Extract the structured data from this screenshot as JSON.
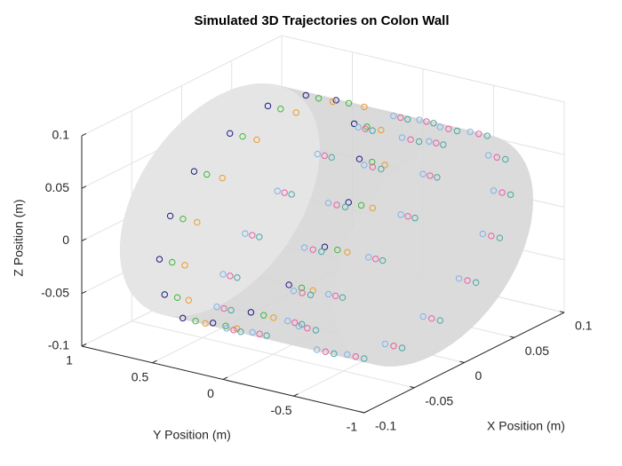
{
  "chart_data": {
    "type": "scatter3d",
    "title": "Simulated 3D Trajectories on Colon Wall",
    "xlabel": "X Position (m)",
    "ylabel": "Y Position (m)",
    "zlabel": "Z Position (m)",
    "xlim": [
      -0.1,
      0.1
    ],
    "ylim": [
      -1,
      1
    ],
    "zlim": [
      -0.1,
      0.1
    ],
    "xticks": [
      -0.1,
      -0.05,
      0,
      0.05,
      0.1
    ],
    "yticks": [
      1,
      0.5,
      0,
      -0.5,
      -1
    ],
    "zticks": [
      -0.1,
      -0.05,
      0,
      0.05,
      0.1
    ],
    "grid": true,
    "surface": {
      "radius": 0.1,
      "y": [
        -0.78,
        0.73
      ],
      "color": "#d4d4d4"
    },
    "series": [
      {
        "color": "#1a1a80",
        "x": [
          0.1,
          0.092,
          0.071,
          0.038,
          0,
          -0.038,
          -0.071,
          -0.092,
          -0.1,
          -0.092,
          -0.071,
          -0.038,
          0,
          0.038,
          0.071,
          0.092
        ],
        "y": [
          0.45,
          0.43,
          0.41,
          0.39,
          0.39,
          0.39,
          0.41,
          0.43,
          0.45,
          0.47,
          0.49,
          0.51,
          0.51,
          0.51,
          0.49,
          0.47
        ],
        "z": [
          0,
          0.038,
          0.071,
          0.092,
          0.1,
          0.092,
          0.071,
          0.038,
          0,
          -0.038,
          -0.071,
          -0.092,
          -0.1,
          -0.092,
          -0.071,
          -0.038
        ]
      },
      {
        "color": "#3db83d",
        "x": [
          0.1,
          0.092,
          0.071,
          0.038,
          0,
          -0.038,
          -0.071,
          -0.092,
          -0.1,
          -0.092,
          -0.071,
          -0.038,
          0,
          0.038,
          0.071,
          0.092
        ],
        "y": [
          0.36,
          0.34,
          0.32,
          0.3,
          0.3,
          0.3,
          0.32,
          0.34,
          0.36,
          0.38,
          0.4,
          0.42,
          0.42,
          0.42,
          0.4,
          0.38
        ],
        "z": [
          0,
          0.038,
          0.071,
          0.092,
          0.1,
          0.092,
          0.071,
          0.038,
          0,
          -0.038,
          -0.071,
          -0.092,
          -0.1,
          -0.092,
          -0.071,
          -0.038
        ]
      },
      {
        "color": "#f09a2a",
        "x": [
          0.1,
          0.092,
          0.071,
          0.038,
          0,
          -0.038,
          -0.071,
          -0.092,
          -0.1,
          -0.092,
          -0.071,
          -0.038,
          0,
          0.038,
          0.071,
          0.092
        ],
        "y": [
          0.27,
          0.24,
          0.21,
          0.2,
          0.19,
          0.2,
          0.21,
          0.24,
          0.27,
          0.3,
          0.33,
          0.34,
          0.35,
          0.34,
          0.33,
          0.3
        ],
        "z": [
          0,
          0.038,
          0.071,
          0.092,
          0.1,
          0.092,
          0.071,
          0.038,
          0,
          -0.038,
          -0.071,
          -0.092,
          -0.1,
          -0.092,
          -0.071,
          -0.038
        ]
      },
      {
        "color": "#7fb2ea",
        "x": [
          0.1,
          0.092,
          0.071,
          0.038,
          0,
          -0.038,
          -0.071,
          -0.092,
          -0.1,
          -0.092,
          -0.071,
          -0.038,
          0,
          0.038,
          0.071,
          0.092,
          0.1,
          0.092,
          0.071,
          0.038,
          0,
          -0.038,
          -0.071,
          -0.092,
          -0.1,
          -0.092,
          -0.071,
          -0.038,
          0,
          0.038,
          0.071,
          0.092
        ],
        "y": [
          0,
          -0.1,
          -0.18,
          -0.23,
          -0.25,
          -0.23,
          -0.18,
          -0.1,
          0,
          0.1,
          0.18,
          0.23,
          0.25,
          0.23,
          0.18,
          0.1,
          -0.5,
          -0.52,
          -0.54,
          -0.56,
          -0.56,
          -0.56,
          -0.54,
          -0.52,
          -0.5,
          -0.48,
          -0.46,
          -0.44,
          -0.44,
          -0.44,
          -0.46,
          -0.48
        ],
        "z": [
          0,
          0.038,
          0.071,
          0.092,
          0.1,
          0.092,
          0.071,
          0.038,
          0,
          -0.038,
          -0.071,
          -0.092,
          -0.1,
          -0.092,
          -0.071,
          -0.038,
          0,
          0.038,
          0.071,
          0.092,
          0.1,
          0.092,
          0.071,
          0.038,
          0,
          -0.038,
          -0.071,
          -0.092,
          -0.1,
          -0.092,
          -0.071,
          -0.038
        ]
      },
      {
        "color": "#e8609f",
        "x": [
          0.1,
          0.092,
          0.071,
          0.038,
          0,
          -0.038,
          -0.071,
          -0.092,
          -0.1,
          -0.092,
          -0.071,
          -0.038,
          0,
          0.038,
          0.071,
          0.092,
          0.1,
          0.092,
          0.071,
          0.038,
          0,
          -0.038,
          -0.071,
          -0.092,
          -0.1,
          -0.092,
          -0.071,
          -0.038,
          0,
          0.038,
          0.071,
          0.092
        ],
        "y": [
          -0.05,
          -0.15,
          -0.23,
          -0.28,
          -0.3,
          -0.28,
          -0.23,
          -0.15,
          -0.05,
          0.05,
          0.13,
          0.18,
          0.2,
          0.18,
          0.13,
          0.05,
          -0.56,
          -0.58,
          -0.6,
          -0.62,
          -0.62,
          -0.62,
          -0.6,
          -0.58,
          -0.56,
          -0.54,
          -0.52,
          -0.5,
          -0.5,
          -0.5,
          -0.52,
          -0.54
        ],
        "z": [
          0,
          0.038,
          0.071,
          0.092,
          0.1,
          0.092,
          0.071,
          0.038,
          0,
          -0.038,
          -0.071,
          -0.092,
          -0.1,
          -0.092,
          -0.071,
          -0.038,
          0,
          0.038,
          0.071,
          0.092,
          0.1,
          0.092,
          0.071,
          0.038,
          0,
          -0.038,
          -0.071,
          -0.092,
          -0.1,
          -0.092,
          -0.071,
          -0.038
        ]
      },
      {
        "color": "#45a8a2",
        "x": [
          0.1,
          0.092,
          0.071,
          0.038,
          0,
          -0.038,
          -0.071,
          -0.092,
          -0.1,
          -0.092,
          -0.071,
          -0.038,
          0,
          0.038,
          0.071,
          0.092,
          0.1,
          0.092,
          0.071,
          0.038,
          0,
          -0.038,
          -0.071,
          -0.092,
          -0.1,
          -0.092,
          -0.071,
          -0.038,
          0,
          0.038,
          0.071,
          0.092
        ],
        "y": [
          -0.1,
          -0.2,
          -0.28,
          -0.33,
          -0.35,
          -0.33,
          -0.28,
          -0.2,
          -0.1,
          0,
          0.08,
          0.13,
          0.15,
          0.13,
          0.08,
          0,
          -0.62,
          -0.64,
          -0.66,
          -0.68,
          -0.68,
          -0.68,
          -0.66,
          -0.64,
          -0.62,
          -0.6,
          -0.58,
          -0.56,
          -0.56,
          -0.56,
          -0.58,
          -0.6
        ],
        "z": [
          0,
          0.038,
          0.071,
          0.092,
          0.1,
          0.092,
          0.071,
          0.038,
          0,
          -0.038,
          -0.071,
          -0.092,
          -0.1,
          -0.092,
          -0.071,
          -0.038,
          0,
          0.038,
          0.071,
          0.092,
          0.1,
          0.092,
          0.071,
          0.038,
          0,
          -0.038,
          -0.071,
          -0.092,
          -0.1,
          -0.092,
          -0.071,
          -0.038
        ]
      }
    ]
  }
}
